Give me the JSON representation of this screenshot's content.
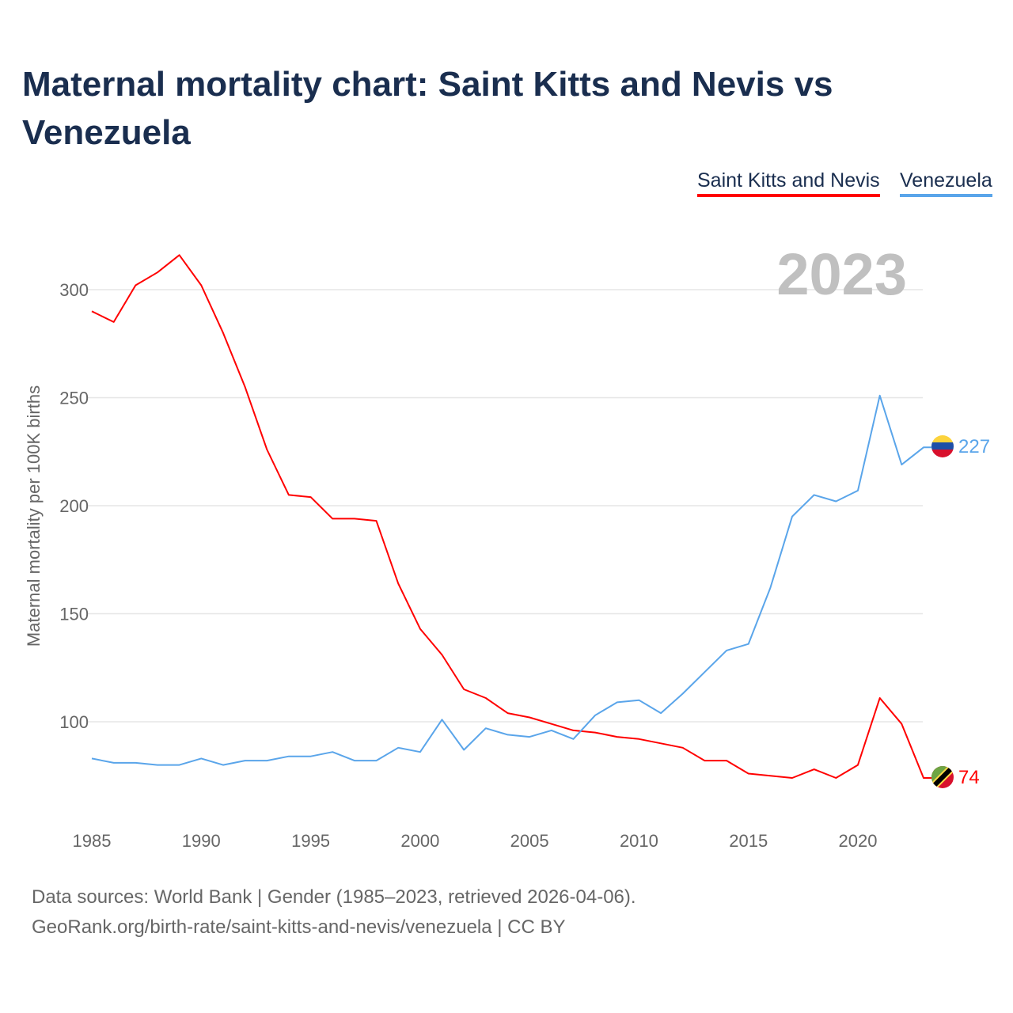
{
  "chart_data": {
    "type": "line",
    "title": "Maternal mortality chart: Saint Kitts and Nevis vs Venezuela",
    "xlabel": "",
    "ylabel": "Maternal mortality per 100K births",
    "xlim": [
      1985,
      2023
    ],
    "ylim": [
      55,
      330
    ],
    "grid": true,
    "legend_position": "top-right",
    "year_watermark": "2023",
    "x_ticks": [
      "1985",
      "1990",
      "1995",
      "2000",
      "2005",
      "2010",
      "2015",
      "2020"
    ],
    "y_ticks": [
      "100",
      "150",
      "200",
      "250",
      "300"
    ],
    "x": [
      1985,
      1986,
      1987,
      1988,
      1989,
      1990,
      1991,
      1992,
      1993,
      1994,
      1995,
      1996,
      1997,
      1998,
      1999,
      2000,
      2001,
      2002,
      2003,
      2004,
      2005,
      2006,
      2007,
      2008,
      2009,
      2010,
      2011,
      2012,
      2013,
      2014,
      2015,
      2016,
      2017,
      2018,
      2019,
      2020,
      2021,
      2022,
      2023
    ],
    "series": [
      {
        "name": "Saint Kitts and Nevis",
        "color": "#ff0000",
        "end_label": "74",
        "flag": "saint-kitts-and-nevis-flag",
        "values": [
          290,
          285,
          302,
          308,
          316,
          302,
          280,
          255,
          226,
          205,
          204,
          194,
          194,
          193,
          164,
          143,
          131,
          115,
          111,
          104,
          102,
          99,
          96,
          95,
          93,
          92,
          90,
          88,
          82,
          82,
          76,
          75,
          74,
          78,
          74,
          80,
          111,
          99,
          74
        ]
      },
      {
        "name": "Venezuela",
        "color": "#5aa5ea",
        "end_label": "227",
        "flag": "venezuela-flag",
        "values": [
          83,
          81,
          81,
          80,
          80,
          83,
          80,
          82,
          82,
          84,
          84,
          86,
          82,
          82,
          88,
          86,
          101,
          87,
          97,
          94,
          93,
          96,
          92,
          103,
          109,
          110,
          104,
          113,
          123,
          133,
          136,
          162,
          195,
          205,
          202,
          207,
          251,
          219,
          227
        ]
      }
    ]
  },
  "footer": {
    "sources": "Data sources: World Bank | Gender (1985–2023, retrieved 2026-04-06).",
    "attribution": "GeoRank.org/birth-rate/saint-kitts-and-nevis/venezuela | CC BY"
  }
}
